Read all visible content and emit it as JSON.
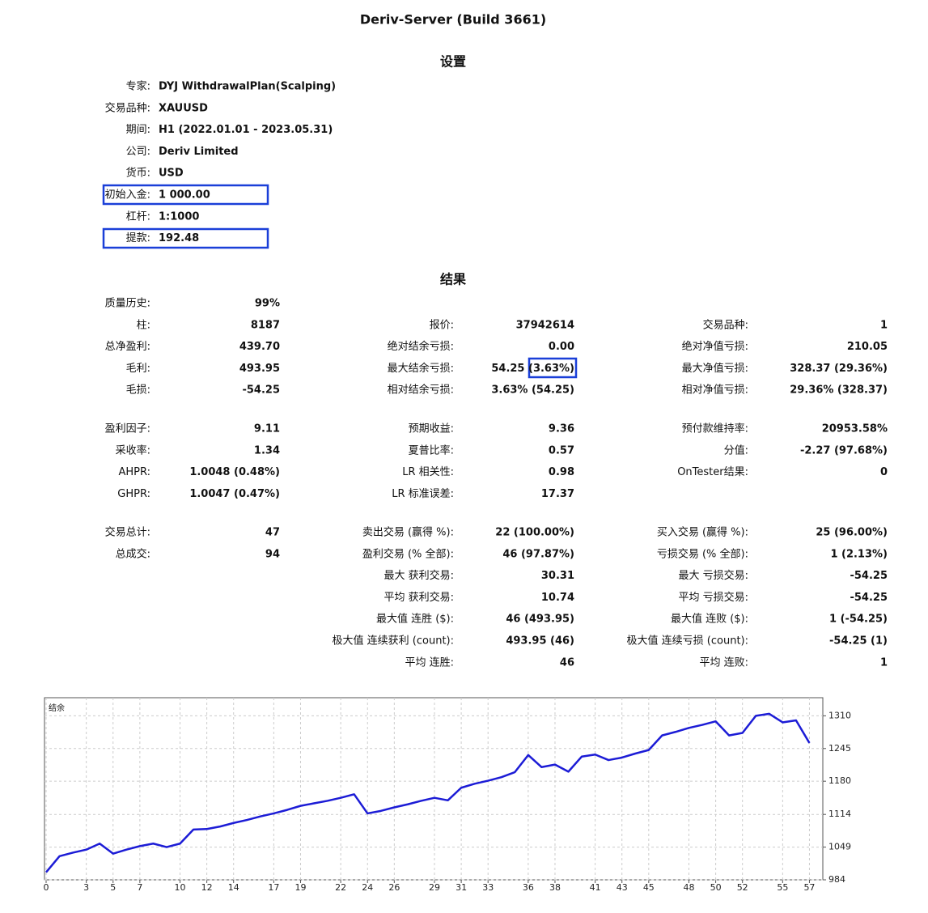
{
  "title": "Deriv-Server (Build 3661)",
  "settings": {
    "heading": "设置",
    "rows": [
      [
        "专家:",
        "DYJ WithdrawalPlan(Scalping)"
      ],
      [
        "交易品种:",
        "XAUUSD"
      ],
      [
        "期间:",
        "H1 (2022.01.01 - 2023.05.31)"
      ],
      [
        "公司:",
        "Deriv Limited"
      ],
      [
        "货币:",
        "USD"
      ],
      [
        "初始入金:",
        "1 000.00"
      ],
      [
        "杠杆:",
        "1:1000"
      ],
      [
        "提款:",
        "192.48"
      ]
    ]
  },
  "results": {
    "heading": "结果",
    "groups": [
      [
        {
          "left": [
            "质量历史:",
            "99%"
          ]
        },
        {
          "left": [
            "柱:",
            "8187"
          ],
          "mid": [
            "报价:",
            "37942614"
          ],
          "right": [
            "交易品种:",
            "1"
          ]
        },
        {
          "left": [
            "总净盈利:",
            "439.70"
          ],
          "mid": [
            "绝对结余亏损:",
            "0.00"
          ],
          "right": [
            "绝对净值亏损:",
            "210.05"
          ]
        },
        {
          "left": [
            "毛利:",
            "493.95"
          ],
          "mid": [
            "最大结余亏损:",
            "54.25 (3.63%)"
          ],
          "right": [
            "最大净值亏损:",
            "328.37 (29.36%)"
          ]
        },
        {
          "left": [
            "毛损:",
            "-54.25"
          ],
          "mid": [
            "相对结余亏损:",
            "3.63% (54.25)"
          ],
          "right": [
            "相对净值亏损:",
            "29.36% (328.37)"
          ]
        }
      ],
      [
        {
          "left": [
            "盈利因子:",
            "9.11"
          ],
          "mid": [
            "预期收益:",
            "9.36"
          ],
          "right": [
            "预付款维持率:",
            "20953.58%"
          ]
        },
        {
          "left": [
            "采收率:",
            "1.34"
          ],
          "mid": [
            "夏普比率:",
            "0.57"
          ],
          "right": [
            "分值:",
            "-2.27 (97.68%)"
          ]
        },
        {
          "left": [
            "AHPR:",
            "1.0048 (0.48%)"
          ],
          "mid": [
            "LR 相关性:",
            "0.98"
          ],
          "right": [
            "OnTester结果:",
            "0"
          ]
        },
        {
          "left": [
            "GHPR:",
            "1.0047 (0.47%)"
          ],
          "mid": [
            "LR 标准误差:",
            "17.37"
          ]
        }
      ],
      [
        {
          "left": [
            "交易总计:",
            "47"
          ],
          "mid": [
            "卖出交易 (赢得 %):",
            "22 (100.00%)"
          ],
          "right": [
            "买入交易 (赢得 %):",
            "25 (96.00%)"
          ]
        },
        {
          "left": [
            "总成交:",
            "94"
          ],
          "mid": [
            "盈利交易 (% 全部):",
            "46 (97.87%)"
          ],
          "right": [
            "亏损交易 (% 全部):",
            "1 (2.13%)"
          ]
        },
        {
          "mid": [
            "最大 获利交易:",
            "30.31"
          ],
          "right": [
            "最大 亏损交易:",
            "-54.25"
          ]
        },
        {
          "mid": [
            "平均 获利交易:",
            "10.74"
          ],
          "right": [
            "平均 亏损交易:",
            "-54.25"
          ]
        },
        {
          "mid": [
            "最大值 连胜 ($):",
            "46 (493.95)"
          ],
          "right": [
            "最大值 连败 ($):",
            "1 (-54.25)"
          ]
        },
        {
          "mid": [
            "极大值 连续获利 (count):",
            "493.95 (46)"
          ],
          "right": [
            "极大值 连续亏损 (count):",
            "-54.25 (1)"
          ]
        },
        {
          "mid": [
            "平均 连胜:",
            "46"
          ],
          "right": [
            "平均 连败:",
            "1"
          ]
        }
      ]
    ]
  },
  "chart_data": {
    "type": "line",
    "title": "结余",
    "color": "#1c1cd6",
    "grid": true,
    "x": [
      0,
      1,
      2,
      3,
      4,
      5,
      6,
      7,
      8,
      9,
      10,
      11,
      12,
      13,
      14,
      15,
      16,
      17,
      18,
      19,
      20,
      21,
      22,
      23,
      24,
      25,
      26,
      27,
      28,
      29,
      30,
      31,
      32,
      33,
      34,
      35,
      36,
      37,
      38,
      39,
      40,
      41,
      42,
      43,
      44,
      45,
      46,
      47,
      48,
      49,
      50,
      51,
      52,
      53,
      54,
      55,
      56,
      57
    ],
    "values": [
      999,
      1031,
      1038,
      1044,
      1056,
      1036,
      1044,
      1051,
      1056,
      1049,
      1056,
      1084,
      1085,
      1090,
      1097,
      1103,
      1110,
      1116,
      1123,
      1131,
      1136,
      1141,
      1147,
      1154,
      1116,
      1121,
      1128,
      1134,
      1141,
      1147,
      1142,
      1167,
      1175,
      1181,
      1188,
      1198,
      1232,
      1208,
      1213,
      1199,
      1229,
      1233,
      1222,
      1227,
      1235,
      1242,
      1271,
      1278,
      1286,
      1292,
      1299,
      1271,
      1276,
      1310,
      1314,
      1297,
      1301,
      1256
    ],
    "xlim": [
      0,
      58
    ],
    "ylim": [
      984,
      1346
    ],
    "xticks": [
      0,
      3,
      5,
      7,
      10,
      12,
      14,
      17,
      19,
      22,
      24,
      26,
      29,
      31,
      33,
      36,
      38,
      41,
      43,
      45,
      48,
      50,
      52,
      55,
      57
    ],
    "yticks": [
      984,
      1049,
      1114,
      1180,
      1245,
      1310
    ]
  }
}
